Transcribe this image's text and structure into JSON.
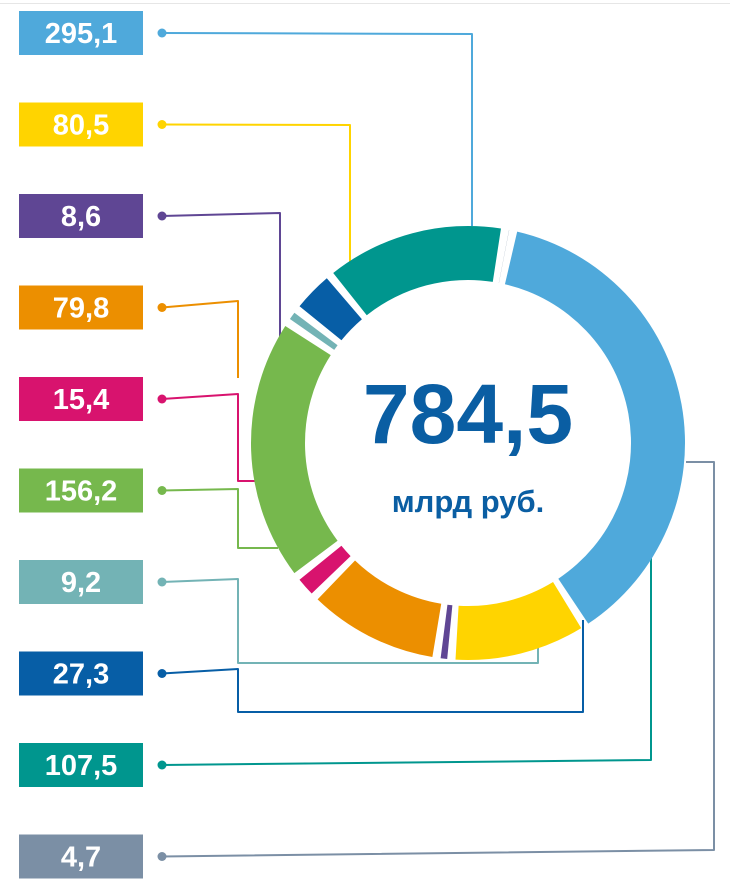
{
  "chart_data": {
    "type": "donut",
    "total_value": "784,5",
    "total_unit": "млрд руб.",
    "series": [
      {
        "label": "295,1",
        "value": 295.1,
        "color": "#4fa9db"
      },
      {
        "label": "80,5",
        "value": 80.5,
        "color": "#ffd400"
      },
      {
        "label": "8,6",
        "value": 8.6,
        "color": "#5f4694"
      },
      {
        "label": "79,8",
        "value": 79.8,
        "color": "#ec8f00"
      },
      {
        "label": "15,4",
        "value": 15.4,
        "color": "#d8136e"
      },
      {
        "label": "156,2",
        "value": 156.2,
        "color": "#76b84d"
      },
      {
        "label": "9,2",
        "value": 9.2,
        "color": "#73b3b5"
      },
      {
        "label": "27,3",
        "value": 27.3,
        "color": "#075ea6"
      },
      {
        "label": "107,5",
        "value": 107.5,
        "color": "#00968e"
      },
      {
        "label": "4,7",
        "value": 4.7,
        "color": "#7b8fa5"
      }
    ]
  }
}
